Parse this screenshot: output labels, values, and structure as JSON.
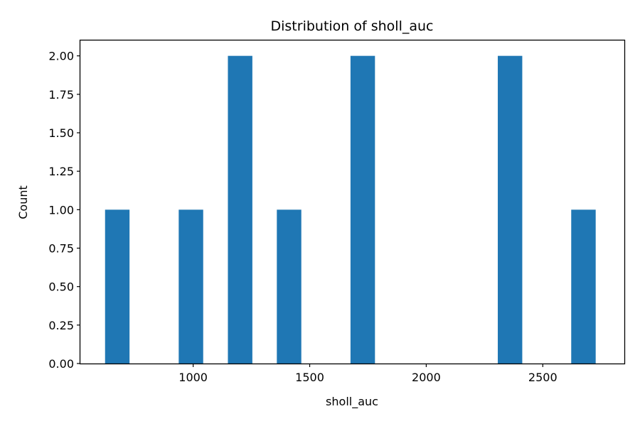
{
  "chart_data": {
    "type": "bar",
    "title": "Distribution of sholl_auc",
    "xlabel": "sholl_auc",
    "ylabel": "Count",
    "bar_color": "#1f77b4",
    "xlim": [
      516,
      2850
    ],
    "ylim": [
      0,
      2.1
    ],
    "xticks": [
      1000,
      1500,
      2000,
      2500
    ],
    "xtick_labels": [
      "1000",
      "1500",
      "2000",
      "2500"
    ],
    "yticks": [
      0,
      0.25,
      0.5,
      0.75,
      1.0,
      1.25,
      1.5,
      1.75,
      2.0
    ],
    "ytick_labels": [
      "0.00",
      "0.25",
      "0.50",
      "0.75",
      "1.00",
      "1.25",
      "1.50",
      "1.75",
      "2.00"
    ],
    "grid": false,
    "bins": [
      {
        "x0": 622,
        "x1": 727,
        "count": 1
      },
      {
        "x0": 938,
        "x1": 1043,
        "count": 1
      },
      {
        "x0": 1149,
        "x1": 1254,
        "count": 2
      },
      {
        "x0": 1359,
        "x1": 1464,
        "count": 1
      },
      {
        "x0": 1675,
        "x1": 1780,
        "count": 2
      },
      {
        "x0": 2307,
        "x1": 2412,
        "count": 2
      },
      {
        "x0": 2622,
        "x1": 2727,
        "count": 1
      }
    ]
  }
}
